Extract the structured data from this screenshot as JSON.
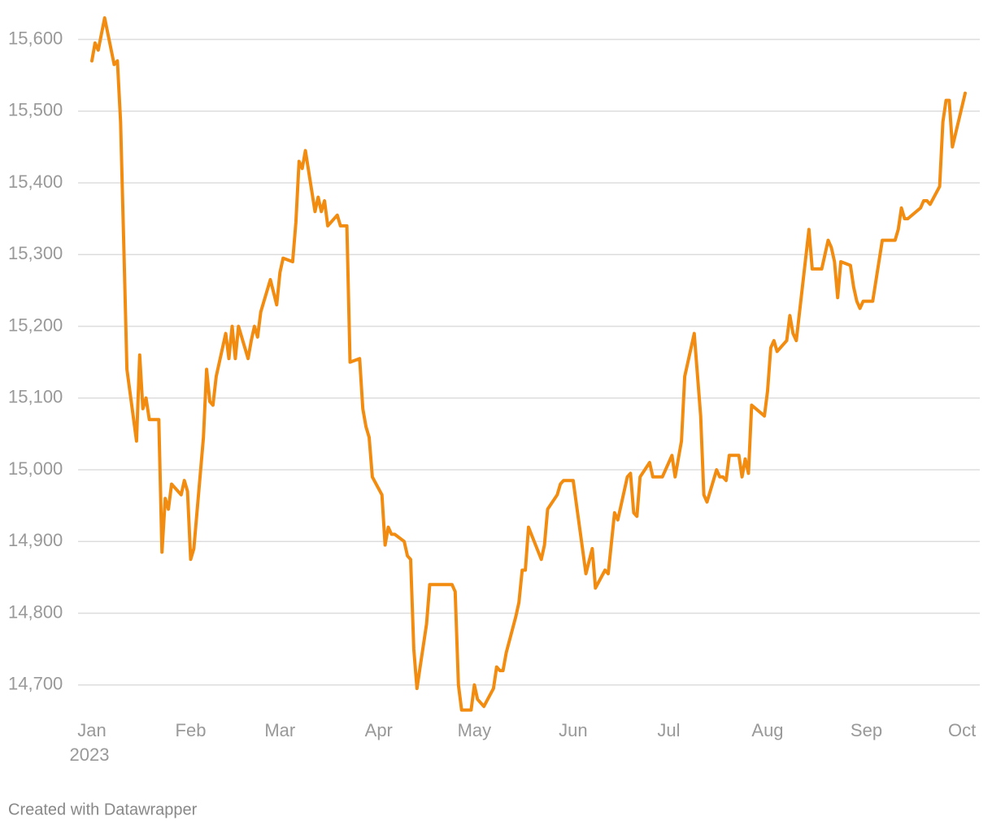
{
  "chart_data": {
    "type": "line",
    "x": [
      0,
      1,
      2,
      4,
      7,
      8,
      9,
      10,
      11,
      14,
      15,
      16,
      17,
      18,
      21,
      22,
      23,
      24,
      25,
      28,
      29,
      30,
      31,
      32,
      35,
      36,
      37,
      38,
      39,
      42,
      43,
      44,
      45,
      46,
      49,
      50,
      51,
      52,
      53,
      56,
      58,
      59,
      60,
      63,
      64,
      65,
      66,
      67,
      70,
      71,
      72,
      73,
      74,
      77,
      78,
      80,
      81,
      84,
      85,
      86,
      87,
      88,
      91,
      92,
      93,
      94,
      95,
      98,
      99,
      100,
      101,
      102,
      103,
      105,
      106,
      113,
      114,
      115,
      116,
      119,
      120,
      121,
      123,
      126,
      127,
      128,
      129,
      130,
      133,
      134,
      135,
      136,
      137,
      141,
      142,
      143,
      146,
      147,
      148,
      151,
      155,
      157,
      158,
      161,
      162,
      164,
      165,
      168,
      169,
      170,
      171,
      172,
      175,
      176,
      179,
      182,
      183,
      184,
      185,
      186,
      189,
      191,
      192,
      193,
      196,
      197,
      198,
      199,
      200,
      203,
      204,
      205,
      206,
      207,
      211,
      212,
      213,
      214,
      215,
      218,
      219,
      220,
      221,
      225,
      226,
      229,
      231,
      232,
      233,
      234,
      235,
      238,
      239,
      240,
      241,
      242,
      245,
      248,
      252,
      253,
      254,
      255,
      256,
      260,
      261,
      262,
      263,
      266,
      267,
      268,
      269,
      270,
      274
    ],
    "values": [
      15570,
      15595,
      15585,
      15630,
      15565,
      15570,
      15485,
      15315,
      15140,
      15040,
      15160,
      15085,
      15100,
      15070,
      15070,
      14885,
      14960,
      14945,
      14980,
      14965,
      14985,
      14970,
      14875,
      14890,
      15045,
      15140,
      15095,
      15090,
      15130,
      15190,
      15155,
      15200,
      15155,
      15200,
      15155,
      15180,
      15200,
      15185,
      15220,
      15265,
      15230,
      15275,
      15295,
      15290,
      15345,
      15430,
      15420,
      15445,
      15360,
      15380,
      15360,
      15375,
      15340,
      15355,
      15340,
      15340,
      15150,
      15155,
      15085,
      15060,
      15045,
      14990,
      14965,
      14895,
      14920,
      14910,
      14910,
      14900,
      14880,
      14875,
      14750,
      14695,
      14725,
      14785,
      14840,
      14840,
      14830,
      14700,
      14665,
      14665,
      14700,
      14680,
      14670,
      14695,
      14725,
      14720,
      14720,
      14745,
      14795,
      14815,
      14860,
      14860,
      14920,
      14875,
      14895,
      14945,
      14965,
      14980,
      14985,
      14985,
      14855,
      14890,
      14835,
      14860,
      14855,
      14940,
      14930,
      14990,
      14995,
      14940,
      14935,
      14990,
      15010,
      14990,
      14990,
      15020,
      14990,
      15015,
      15040,
      15130,
      15190,
      15075,
      14965,
      14955,
      15000,
      14990,
      14990,
      14985,
      15020,
      15020,
      14990,
      15015,
      14995,
      15090,
      15075,
      15110,
      15170,
      15180,
      15165,
      15180,
      15215,
      15190,
      15180,
      15335,
      15280,
      15280,
      15320,
      15310,
      15290,
      15240,
      15290,
      15285,
      15255,
      15235,
      15225,
      15235,
      15235,
      15320,
      15320,
      15335,
      15365,
      15350,
      15350,
      15365,
      15375,
      15375,
      15370,
      15395,
      15485,
      15515,
      15515,
      15450,
      15525
    ],
    "color": "#f28c10",
    "xlim": [
      0,
      274
    ],
    "xticks": [
      {
        "value": 0,
        "label": "Jan"
      },
      {
        "value": 31,
        "label": "Feb"
      },
      {
        "value": 59,
        "label": "Mar"
      },
      {
        "value": 90,
        "label": "Apr"
      },
      {
        "value": 120,
        "label": "May"
      },
      {
        "value": 151,
        "label": "Jun"
      },
      {
        "value": 181,
        "label": "Jul"
      },
      {
        "value": 212,
        "label": "Aug"
      },
      {
        "value": 243,
        "label": "Sep"
      },
      {
        "value": 273,
        "label": "Oct"
      }
    ],
    "x_year_label": "2023",
    "ylim": [
      14660,
      15630
    ],
    "yticks": [
      {
        "value": 14700,
        "label": "14,700"
      },
      {
        "value": 14800,
        "label": "14,800"
      },
      {
        "value": 14900,
        "label": "14,900"
      },
      {
        "value": 15000,
        "label": "15,000"
      },
      {
        "value": 15100,
        "label": "15,100"
      },
      {
        "value": 15200,
        "label": "15,200"
      },
      {
        "value": 15300,
        "label": "15,300"
      },
      {
        "value": 15400,
        "label": "15,400"
      },
      {
        "value": 15500,
        "label": "15,500"
      },
      {
        "value": 15600,
        "label": "15,600"
      }
    ],
    "grid": true,
    "credit": "Created with Datawrapper"
  }
}
